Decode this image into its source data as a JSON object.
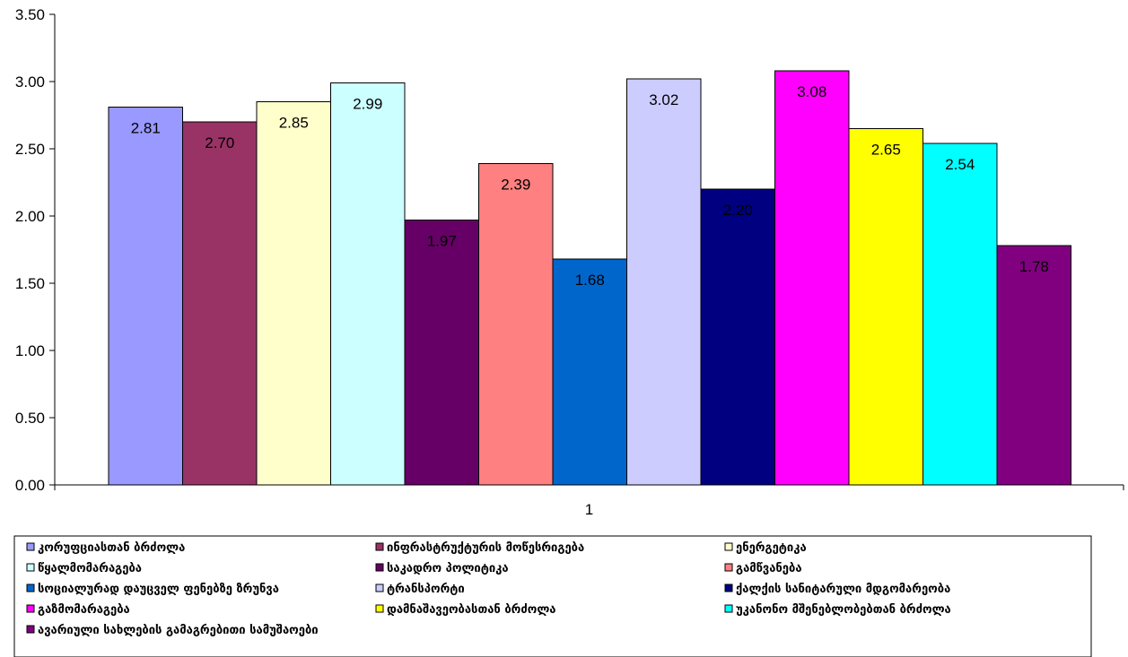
{
  "chart_data": {
    "type": "bar",
    "categories": [
      "1"
    ],
    "ylim": [
      0,
      3.5
    ],
    "yticks": [
      "0.00",
      "0.50",
      "1.00",
      "1.50",
      "2.00",
      "2.50",
      "3.00",
      "3.50"
    ],
    "grid": false,
    "legend_position": "bottom",
    "series": [
      {
        "name": "კორუფციასთან ბრძოლა",
        "values": [
          2.81
        ],
        "label": "2.81",
        "color": "#9999FF"
      },
      {
        "name": "ინფრასტრუქტურის მოწესრიგება",
        "values": [
          2.7
        ],
        "label": "2.70",
        "color": "#993366"
      },
      {
        "name": "ენერგეტიკა",
        "values": [
          2.85
        ],
        "label": "2.85",
        "color": "#FFFFCC"
      },
      {
        "name": "წყალმომარაგება",
        "values": [
          2.99
        ],
        "label": "2.99",
        "color": "#CCFFFF"
      },
      {
        "name": "საკადრო პოლიტიკა",
        "values": [
          1.97
        ],
        "label": "1.97",
        "color": "#660066"
      },
      {
        "name": "გამწვანება",
        "values": [
          2.39
        ],
        "label": "2.39",
        "color": "#FF8080"
      },
      {
        "name": "სოციალურად დაუცველ ფენებზე ზრუნვა",
        "values": [
          1.68
        ],
        "label": "1.68",
        "color": "#0066CC"
      },
      {
        "name": "ტრანსპორტი",
        "values": [
          3.02
        ],
        "label": "3.02",
        "color": "#CCCCFF"
      },
      {
        "name": "ქალქის სანიტარული მდგომარეობა",
        "values": [
          2.2
        ],
        "label": "2.20",
        "color": "#000080"
      },
      {
        "name": "გაზმომარაგება",
        "values": [
          3.08
        ],
        "label": "3.08",
        "color": "#FF00FF"
      },
      {
        "name": "დამნაშავეობასთან ბრძოლა",
        "values": [
          2.65
        ],
        "label": "2.65",
        "color": "#FFFF00"
      },
      {
        "name": "უკანონო მშენებლობებთან ბრძოლა",
        "values": [
          2.54
        ],
        "label": "2.54",
        "color": "#00FFFF"
      },
      {
        "name": "ავარიული სახლების გამაგრებითი სამუშაოები",
        "values": [
          1.78
        ],
        "label": "1.78",
        "color": "#800080"
      }
    ]
  }
}
